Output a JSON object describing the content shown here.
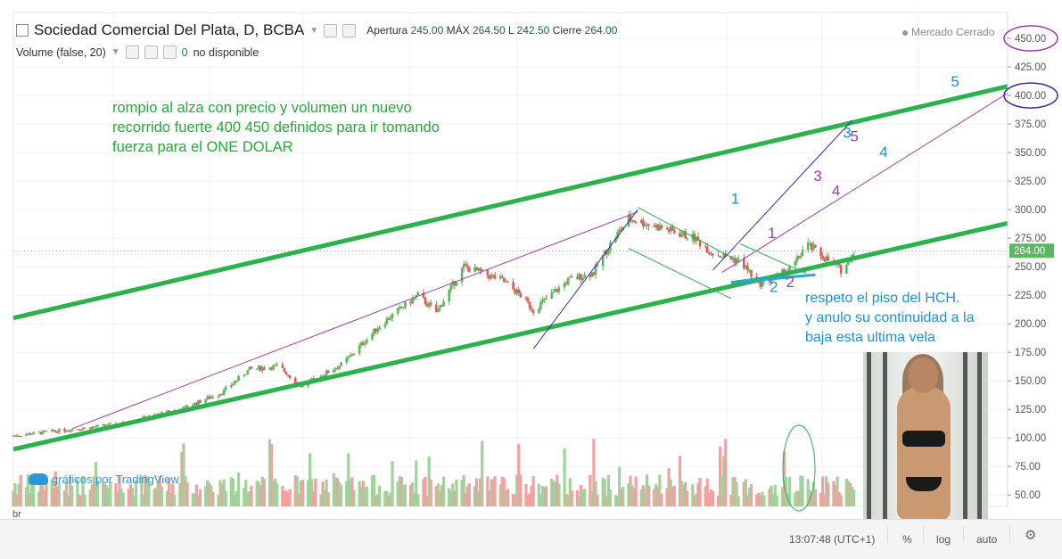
{
  "header": {
    "title": "Sociedad Comercial Del Plata, D, BCBA",
    "apertura_label": "Apertura",
    "apertura_value": "245.00",
    "max_label": "MÁX",
    "max_value": "264.50",
    "low_label": "L",
    "low_value": "242.50",
    "close_label": "Cierre",
    "close_value": "264.00"
  },
  "volume_header": {
    "label": "Volume (false, 20)",
    "value": "0",
    "status": "no disponible"
  },
  "market_status": "Mercado Cerrado",
  "branding": "gráficos por TradingView",
  "bottom_bar": {
    "clock": "13:07:48 (UTC+1)",
    "percent": "%",
    "log": "log",
    "auto": "auto"
  },
  "price_tag": "264.00",
  "colors": {
    "up": "#5cb860",
    "down": "#e05a5a",
    "vol_up": "#9fd39a",
    "vol_down": "#f2a0a0",
    "channel": "#2bb24c",
    "annotation_green": "#27a83a",
    "annotation_blue": "#1f8fd6",
    "annotation_purple": "#9b3fa8",
    "axis_circle_purple": "#9b3fa8",
    "axis_circle_blue": "#2c2cb0",
    "floor_line": "#29a3e8"
  },
  "annotations": {
    "main": "rompio al alza con precio y volumen un nuevo\nrecorrido fuerte 400 450 definidos para ir tomando\nfuerza para el ONE DOLAR",
    "side": "respeto el piso del HCH.\ny anulo su continuidad a la\nbaja esta ultima vela"
  },
  "wave_labels": [
    {
      "text": "1",
      "color": "blue",
      "price": 305,
      "date": "2017-05-15"
    },
    {
      "text": "2",
      "color": "blue",
      "price": 228,
      "date": "2017-06-05"
    },
    {
      "text": "3",
      "color": "blue",
      "price": 363,
      "date": "2017-07-15"
    },
    {
      "text": "4",
      "color": "blue",
      "price": 346,
      "date": "2017-08-04"
    },
    {
      "text": "5",
      "color": "blue",
      "price": 408,
      "date": "2017-09-12"
    },
    {
      "text": "1",
      "color": "purple",
      "price": 275,
      "date": "2017-06-04"
    },
    {
      "text": "2",
      "color": "purple",
      "price": 232,
      "date": "2017-06-14"
    },
    {
      "text": "3",
      "color": "purple",
      "price": 325,
      "date": "2017-06-29"
    },
    {
      "text": "4",
      "color": "purple",
      "price": 312,
      "date": "2017-07-09"
    },
    {
      "text": "5",
      "color": "purple",
      "price": 360,
      "date": "2017-07-19"
    }
  ],
  "chart_data": {
    "type": "candlestick",
    "x_range": [
      "2016-04-18",
      "2017-10-13"
    ],
    "ylim": [
      40,
      468
    ],
    "y_ticks": [
      50,
      75,
      100,
      125,
      150,
      175,
      200,
      225,
      250,
      275,
      300,
      325,
      350,
      375,
      400,
      425,
      450
    ],
    "y_tick_labels": [
      "50.00",
      "75.00",
      "100.00",
      "125.00",
      "150.00",
      "175.00",
      "200.00",
      "225.00",
      "250.00",
      "275.00",
      "300.00",
      "325.00",
      "350.00",
      "375.00",
      "400.00",
      "425.00",
      "450.00"
    ],
    "x_tick_labels": [
      "br"
    ],
    "circled_levels": [
      450,
      400
    ],
    "close_line": 264,
    "waypoints": [
      {
        "date": "2016-04-18",
        "price": 102
      },
      {
        "date": "2016-06-15",
        "price": 112
      },
      {
        "date": "2016-07-20",
        "price": 126
      },
      {
        "date": "2016-08-10",
        "price": 140
      },
      {
        "date": "2016-08-25",
        "price": 160
      },
      {
        "date": "2016-09-10",
        "price": 163
      },
      {
        "date": "2016-09-22",
        "price": 145
      },
      {
        "date": "2016-10-15",
        "price": 165
      },
      {
        "date": "2016-11-05",
        "price": 200
      },
      {
        "date": "2016-11-25",
        "price": 225
      },
      {
        "date": "2016-12-05",
        "price": 210
      },
      {
        "date": "2016-12-20",
        "price": 250
      },
      {
        "date": "2017-01-10",
        "price": 238
      },
      {
        "date": "2017-01-20",
        "price": 225
      },
      {
        "date": "2017-01-27",
        "price": 212
      },
      {
        "date": "2017-02-15",
        "price": 238
      },
      {
        "date": "2017-03-01",
        "price": 245
      },
      {
        "date": "2017-03-10",
        "price": 270
      },
      {
        "date": "2017-03-20",
        "price": 292
      },
      {
        "date": "2017-04-05",
        "price": 285
      },
      {
        "date": "2017-04-25",
        "price": 275
      },
      {
        "date": "2017-05-05",
        "price": 262
      },
      {
        "date": "2017-05-20",
        "price": 255
      },
      {
        "date": "2017-05-30",
        "price": 235
      },
      {
        "date": "2017-06-08",
        "price": 240
      },
      {
        "date": "2017-06-18",
        "price": 250
      },
      {
        "date": "2017-06-25",
        "price": 270
      },
      {
        "date": "2017-07-05",
        "price": 258
      },
      {
        "date": "2017-07-15",
        "price": 246
      },
      {
        "date": "2017-07-21",
        "price": 264
      }
    ],
    "volume_scale_max": 120,
    "trendlines": [
      {
        "name": "upper-channel",
        "color": "channel",
        "width": 5,
        "p1": {
          "date": "2016-04-18",
          "price": 205
        },
        "p2": {
          "date": "2017-10-13",
          "price": 408
        }
      },
      {
        "name": "lower-channel",
        "color": "channel",
        "width": 5,
        "p1": {
          "date": "2016-04-18",
          "price": 90
        },
        "p2": {
          "date": "2017-10-13",
          "price": 288
        }
      },
      {
        "name": "purple-trend",
        "color": "annotation_purple",
        "width": 1,
        "p1": {
          "date": "2016-05-20",
          "price": 108
        },
        "p2": {
          "date": "2017-03-25",
          "price": 298
        }
      },
      {
        "name": "purple-projection",
        "color": "annotation_purple",
        "width": 1,
        "p1": {
          "date": "2017-05-10",
          "price": 245
        },
        "p2": {
          "date": "2017-10-13",
          "price": 402
        }
      },
      {
        "name": "blue-impulse-1",
        "color": "axis_circle_blue",
        "width": 1,
        "p1": {
          "date": "2017-01-27",
          "price": 178
        },
        "p2": {
          "date": "2017-03-25",
          "price": 300
        }
      },
      {
        "name": "blue-impulse-2",
        "color": "axis_circle_blue",
        "width": 1,
        "p1": {
          "date": "2017-05-05",
          "price": 247
        },
        "p2": {
          "date": "2017-07-20",
          "price": 378
        }
      },
      {
        "name": "down-channel-top",
        "color": "channel",
        "width": 1,
        "p1": {
          "date": "2017-03-25",
          "price": 302
        },
        "p2": {
          "date": "2017-05-20",
          "price": 254
        }
      },
      {
        "name": "down-channel-bottom",
        "color": "channel",
        "width": 1,
        "p1": {
          "date": "2017-03-20",
          "price": 266
        },
        "p2": {
          "date": "2017-05-15",
          "price": 222
        }
      },
      {
        "name": "hch-floor",
        "color": "floor_line",
        "width": 3,
        "p1": {
          "date": "2017-05-15",
          "price": 236
        },
        "p2": {
          "date": "2017-06-30",
          "price": 243
        }
      },
      {
        "name": "triangle-top",
        "color": "channel",
        "width": 1,
        "p1": {
          "date": "2017-05-20",
          "price": 270
        },
        "p2": {
          "date": "2017-06-25",
          "price": 244
        }
      },
      {
        "name": "triangle-bottom",
        "color": "channel",
        "width": 1,
        "p1": {
          "date": "2017-05-15",
          "price": 237
        },
        "p2": {
          "date": "2017-06-25",
          "price": 246
        }
      }
    ]
  }
}
